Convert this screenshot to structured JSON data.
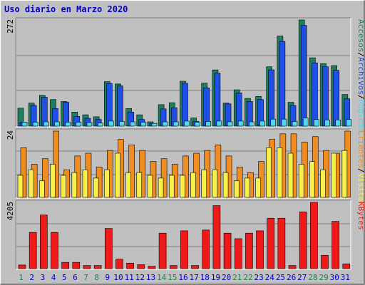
{
  "chart_data": {
    "type": "bar",
    "title": "Uso diario en Marzo 2020",
    "categories": [
      "1",
      "2",
      "3",
      "4",
      "5",
      "6",
      "7",
      "8",
      "9",
      "10",
      "11",
      "12",
      "13",
      "14",
      "15",
      "16",
      "17",
      "18",
      "19",
      "20",
      "21",
      "22",
      "23",
      "24",
      "25",
      "26",
      "27",
      "28",
      "29",
      "30",
      "31"
    ],
    "weekend_days": [
      "1",
      "7",
      "8",
      "14",
      "15",
      "21",
      "22",
      "28",
      "29"
    ],
    "colors": {
      "accesos": "#1a8060",
      "archivos": "#1f4fe6",
      "paginas": "#4fd8f0",
      "clientes": "#f8f04a",
      "visitas": "#f08c20",
      "kbytes": "#ee1a1a",
      "weekday_label": "#0000cc",
      "weekend_label": "#1a8a4a"
    },
    "panels": [
      {
        "id": "top",
        "ymax_label": "272",
        "ylim": [
          0,
          272
        ],
        "legend": [
          {
            "text": "Accesos",
            "color": "#1a8060"
          },
          {
            "text": "/",
            "color": "#000000"
          },
          {
            "text": "Archivos",
            "color": "#1f4fe6"
          },
          {
            "text": "/",
            "color": "#000000"
          },
          {
            "text": "Páginas",
            "color": "#4fd8f0"
          }
        ],
        "series": [
          {
            "name": "Accesos",
            "values": [
              46,
              59,
              79,
              68,
              63,
              36,
              29,
              24,
              114,
              108,
              45,
              29,
              11,
              55,
              60,
              115,
              21,
              110,
              144,
              59,
              93,
              71,
              76,
              152,
              231,
              61,
              272,
              175,
              160,
              155,
              81
            ]
          },
          {
            "name": "Archivos",
            "values": [
              10,
              53,
              74,
              45,
              61,
              25,
              20,
              17,
              109,
              103,
              36,
              17,
              6,
              44,
              47,
              110,
              12,
              98,
              136,
              57,
              85,
              63,
              68,
              144,
              217,
              53,
              258,
              162,
              152,
              143,
              70
            ]
          },
          {
            "name": "Páginas",
            "values": [
              10,
              10,
              11,
              11,
              10,
              10,
              9,
              8,
              13,
              12,
              11,
              10,
              7,
              11,
              11,
              13,
              10,
              12,
              13,
              11,
              13,
              11,
              13,
              18,
              18,
              12,
              21,
              17,
              16,
              16,
              17
            ]
          }
        ]
      },
      {
        "id": "middle",
        "ymax_label": "24",
        "ylim": [
          0,
          24
        ],
        "legend": [
          {
            "text": "Clientes",
            "color": "#f08c20"
          },
          {
            "text": "/",
            "color": "#000000"
          },
          {
            "text": "Visitas",
            "color": "#f8f04a"
          }
        ],
        "series": [
          {
            "name": "Visitas",
            "values": [
              18,
              12,
              14,
              24,
              10,
              15,
              16,
              11,
              17,
              21,
              19,
              17,
              13,
              14,
              12,
              15,
              16,
              17,
              19,
              15,
              11,
              9,
              13,
              21,
              23,
              23,
              20,
              22,
              17,
              16,
              24
            ]
          },
          {
            "name": "Clientes",
            "values": [
              8,
              10,
              6,
              12,
              8,
              9,
              10,
              7,
              10,
              16,
              9,
              9,
              8,
              7,
              8,
              8,
              9,
              10,
              10,
              9,
              6,
              7,
              7,
              18,
              18,
              16,
              12,
              13,
              10,
              16,
              17
            ]
          }
        ]
      },
      {
        "id": "bottom",
        "ymax_label": "4205",
        "ylim": [
          0,
          4205
        ],
        "legend": [
          {
            "text": "KBytes",
            "color": "#ee1a1a"
          }
        ],
        "series": [
          {
            "name": "KBytes",
            "values": [
              230,
              2300,
              3400,
              2300,
              400,
              400,
              200,
              200,
              2550,
              600,
              350,
              250,
              150,
              2250,
              200,
              2400,
              200,
              2450,
              4000,
              2250,
              1900,
              2250,
              2400,
              3200,
              3200,
              200,
              3600,
              4205,
              850,
              3000,
              300
            ]
          }
        ]
      }
    ]
  }
}
